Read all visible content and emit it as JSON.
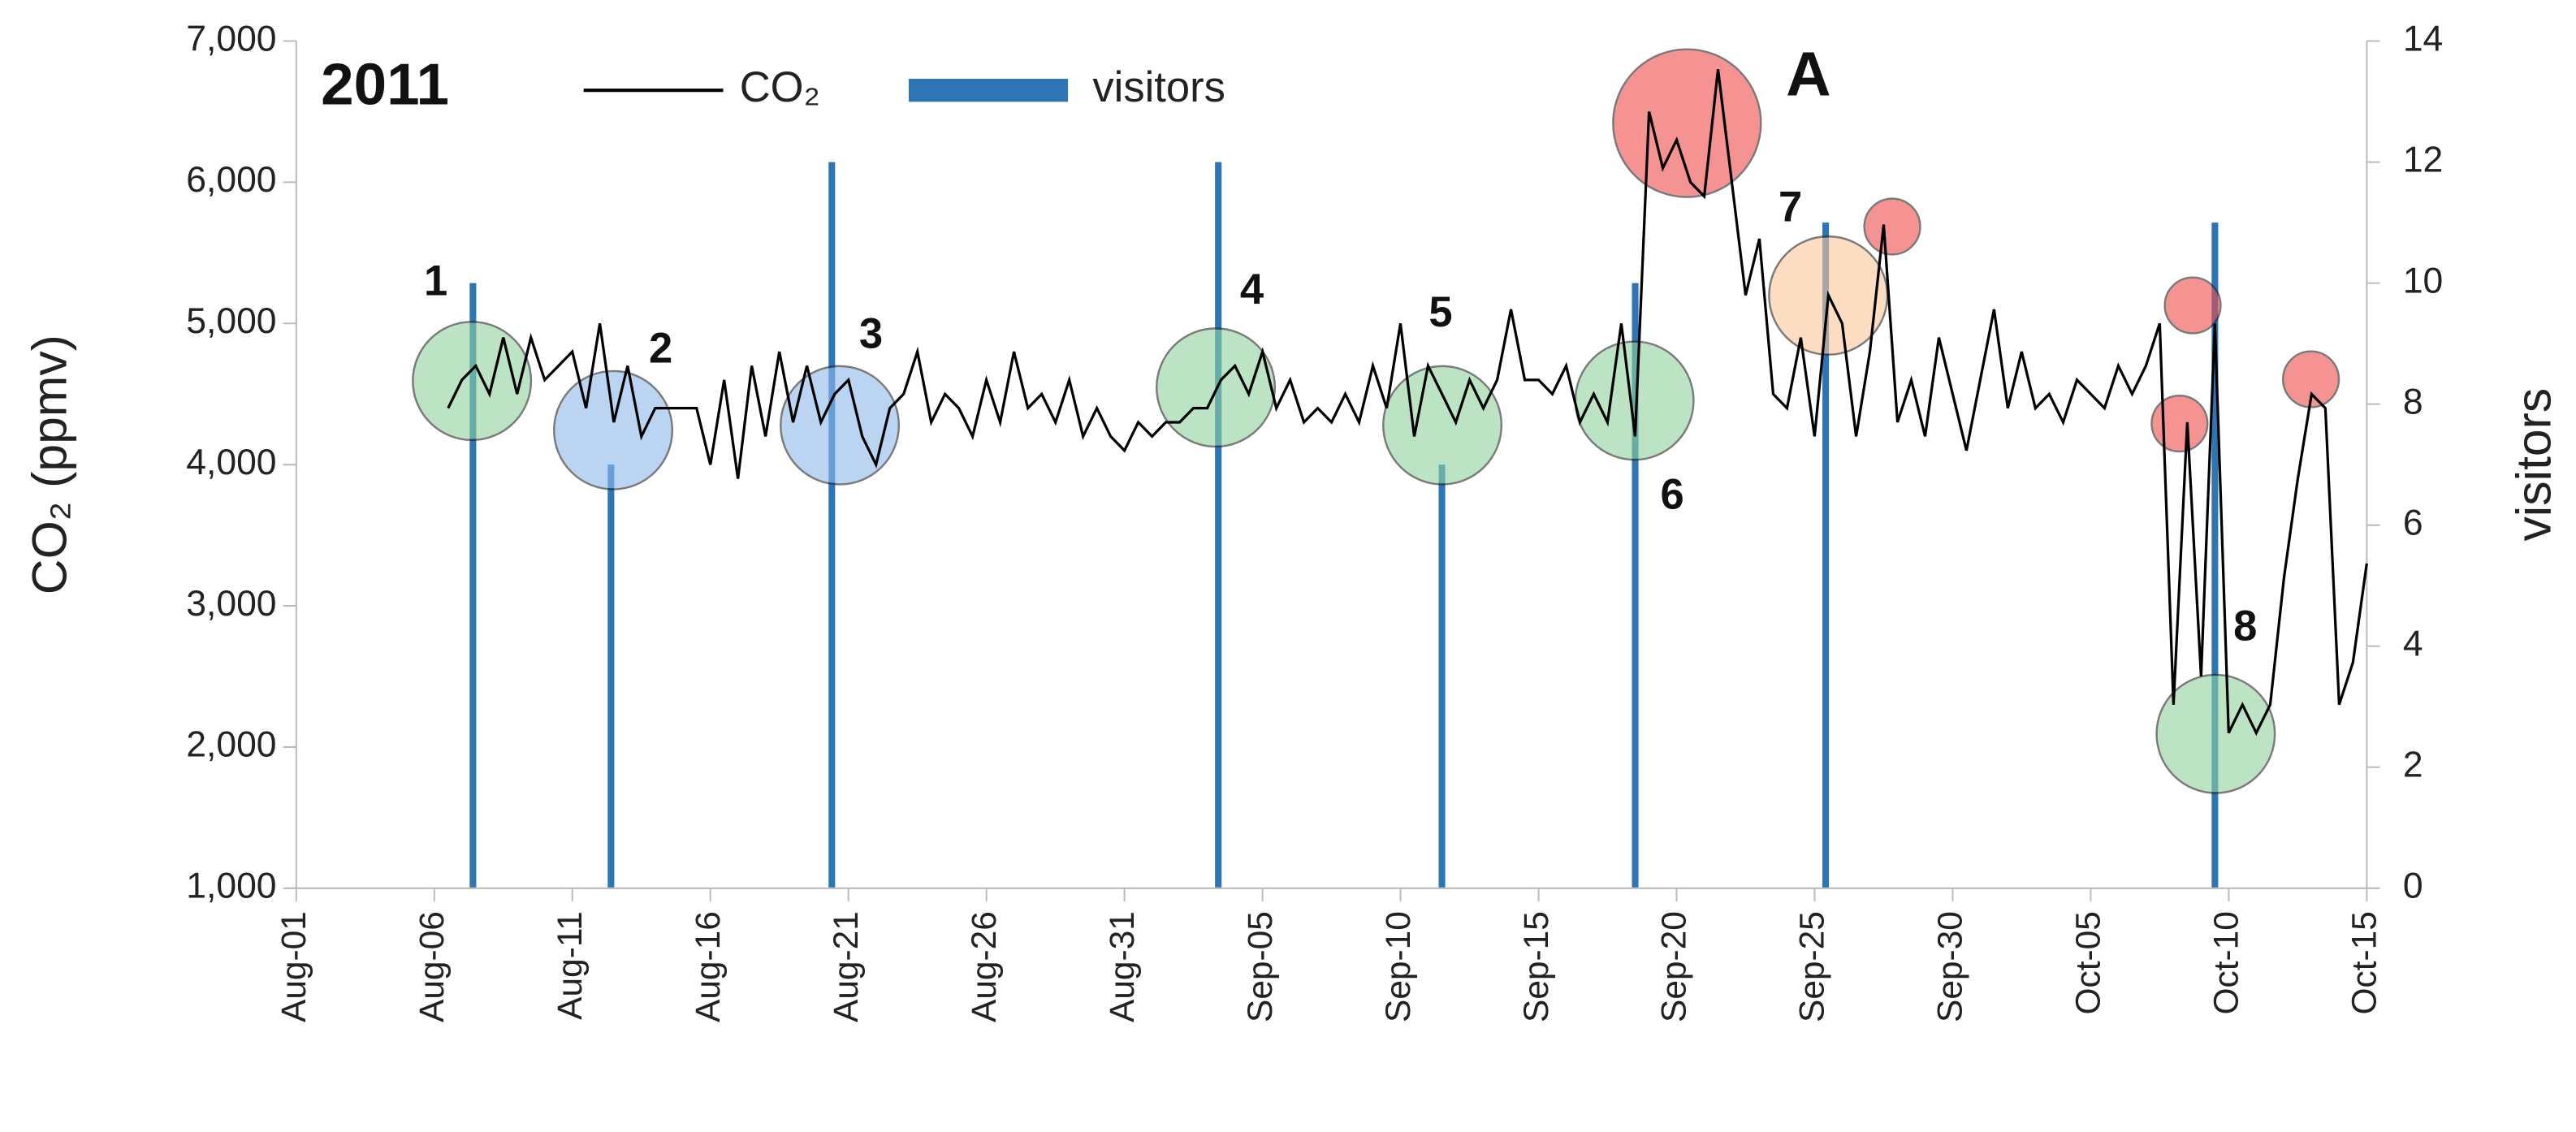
{
  "chart_data": {
    "type": "line",
    "legend_title": "2011",
    "ylabel": "CO₂ (ppmv)",
    "y2label": "visitors",
    "xlim": [
      0,
      75
    ],
    "xticks": [
      {
        "value": 0,
        "label": "Aug-01"
      },
      {
        "value": 5,
        "label": "Aug-06"
      },
      {
        "value": 10,
        "label": "Aug-11"
      },
      {
        "value": 15,
        "label": "Aug-16"
      },
      {
        "value": 20,
        "label": "Aug-21"
      },
      {
        "value": 25,
        "label": "Aug-26"
      },
      {
        "value": 30,
        "label": "Aug-31"
      },
      {
        "value": 35,
        "label": "Sep-05"
      },
      {
        "value": 40,
        "label": "Sep-10"
      },
      {
        "value": 45,
        "label": "Sep-15"
      },
      {
        "value": 50,
        "label": "Sep-20"
      },
      {
        "value": 55,
        "label": "Sep-25"
      },
      {
        "value": 60,
        "label": "Sep-30"
      },
      {
        "value": 65,
        "label": "Oct-05"
      },
      {
        "value": 70,
        "label": "Oct-10"
      },
      {
        "value": 75,
        "label": "Oct-15"
      }
    ],
    "ylim": [
      1000,
      7000
    ],
    "yticks": [
      {
        "value": 1000,
        "label": "1,000"
      },
      {
        "value": 2000,
        "label": "2,000"
      },
      {
        "value": 3000,
        "label": "3,000"
      },
      {
        "value": 4000,
        "label": "4,000"
      },
      {
        "value": 5000,
        "label": "5,000"
      },
      {
        "value": 6000,
        "label": "6,000"
      },
      {
        "value": 7000,
        "label": "7,000"
      }
    ],
    "y2lim": [
      0,
      14
    ],
    "y2ticks": [
      0,
      2,
      4,
      6,
      8,
      10,
      12,
      14
    ],
    "annotations": [
      "1",
      "2",
      "3",
      "4",
      "5",
      "6",
      "7",
      "8",
      "A"
    ],
    "series": [
      {
        "name": "CO₂",
        "color": "#000000",
        "x": [
          5.5,
          6,
          6.5,
          7,
          7.5,
          8,
          8.5,
          9,
          9.5,
          10,
          10.5,
          11,
          11.5,
          12,
          12.5,
          13,
          13.5,
          14,
          14.5,
          15,
          15.5,
          16,
          16.5,
          17,
          17.5,
          18,
          18.5,
          19,
          19.5,
          20,
          20.5,
          21,
          21.5,
          22,
          22.5,
          23,
          23.5,
          24,
          24.5,
          25,
          25.5,
          26,
          26.5,
          27,
          27.5,
          28,
          28.5,
          29,
          29.5,
          30,
          30.5,
          31,
          31.5,
          32,
          32.5,
          33,
          33.5,
          34,
          34.5,
          35,
          35.5,
          36,
          36.5,
          37,
          37.5,
          38,
          38.5,
          39,
          39.5,
          40,
          40.5,
          41,
          41.5,
          42,
          42.5,
          43,
          43.5,
          44,
          44.5,
          45,
          45.5,
          46,
          46.5,
          47,
          47.5,
          48,
          48.5,
          49,
          49.5,
          50,
          50.5,
          51,
          51.5,
          52,
          52.5,
          53,
          53.5,
          54,
          54.5,
          55,
          55.5,
          56,
          56.5,
          57,
          57.5,
          58,
          58.5,
          59,
          59.5,
          60,
          60.5,
          61,
          61.5,
          62,
          62.5,
          63,
          63.5,
          64,
          64.5,
          65,
          65.5,
          66,
          66.5,
          67,
          67.5,
          68,
          68.5,
          69,
          69.5,
          70,
          70.5,
          71,
          71.5,
          72,
          72.5,
          73,
          73.5,
          74,
          74.5,
          75
        ],
        "values": [
          4400,
          4600,
          4700,
          4500,
          4900,
          4500,
          4900,
          4600,
          4700,
          4800,
          4400,
          5000,
          4300,
          4700,
          4200,
          4400,
          4400,
          4400,
          4400,
          4000,
          4600,
          3900,
          4700,
          4200,
          4800,
          4300,
          4700,
          4300,
          4500,
          4600,
          4200,
          4000,
          4400,
          4500,
          4800,
          4300,
          4500,
          4400,
          4200,
          4600,
          4300,
          4800,
          4400,
          4500,
          4300,
          4600,
          4200,
          4400,
          4200,
          4100,
          4300,
          4200,
          4300,
          4300,
          4400,
          4400,
          4600,
          4700,
          4500,
          4800,
          4400,
          4600,
          4300,
          4400,
          4300,
          4500,
          4300,
          4700,
          4400,
          5000,
          4200,
          4700,
          4500,
          4300,
          4600,
          4400,
          4600,
          5100,
          4600,
          4600,
          4500,
          4700,
          4300,
          4500,
          4300,
          5000,
          4200,
          6500,
          6100,
          6300,
          6000,
          5900,
          6800,
          6000,
          5200,
          5600,
          4500,
          4400,
          4900,
          4200,
          5200,
          5000,
          4200,
          4800,
          5700,
          4300,
          4600,
          4200,
          4900,
          4500,
          4100,
          4600,
          5100,
          4400,
          4800,
          4400,
          4500,
          4300,
          4600,
          4500,
          4400,
          4700,
          4500,
          4700,
          5000,
          2300,
          4300,
          2500,
          5000,
          2100,
          2300,
          2100,
          2300,
          3200,
          3900,
          4500,
          4400,
          2300,
          2600,
          3300
        ]
      },
      {
        "name": "visitors",
        "color": "#2e75b6",
        "axis": "y2",
        "x": [
          6.4,
          11.4,
          19.4,
          33.4,
          41.5,
          48.5,
          55.4,
          69.5
        ],
        "values": [
          10,
          7,
          12,
          12,
          7,
          10,
          11,
          11
        ]
      }
    ]
  }
}
